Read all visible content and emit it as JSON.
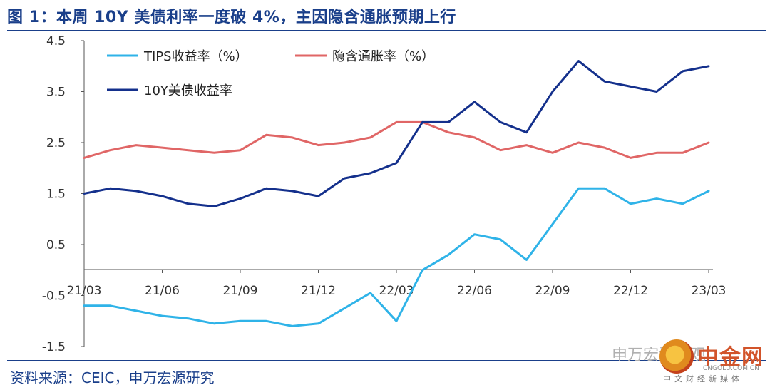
{
  "header": {
    "title": "图 1：本周 10Y 美债利率一度破 4%，主因隐含通胀预期上行"
  },
  "footer": {
    "source": "资料来源：CEIC，申万宏源研究"
  },
  "watermark": {
    "account_text": "申万宏源宏观",
    "logo_name": "中金网",
    "logo_url": "CNGOLD.COM.CN",
    "logo_sub": "中文财经新媒体"
  },
  "chart_data": {
    "type": "line",
    "title": "",
    "xlabel": "",
    "ylabel": "",
    "ylim": [
      -1.5,
      4.5
    ],
    "y_ticks": [
      -1.5,
      -0.5,
      0.5,
      1.5,
      2.5,
      3.5,
      4.5
    ],
    "x_tick_labels": [
      "21/03",
      "21/06",
      "21/09",
      "21/12",
      "22/03",
      "22/06",
      "22/09",
      "22/12",
      "23/03"
    ],
    "x": [
      "21/03",
      "21/04",
      "21/05",
      "21/06",
      "21/07",
      "21/08",
      "21/09",
      "21/10",
      "21/11",
      "21/12",
      "22/01",
      "22/02",
      "22/03",
      "22/04",
      "22/05",
      "22/06",
      "22/07",
      "22/08",
      "22/09",
      "22/10",
      "22/11",
      "22/12",
      "23/01",
      "23/02",
      "23/03"
    ],
    "legend_position": "top-left",
    "grid": false,
    "series": [
      {
        "name": "TIPS收益率（%）",
        "color": "#2fb3e8",
        "values": [
          -0.7,
          -0.7,
          -0.8,
          -0.9,
          -0.95,
          -1.05,
          -1.0,
          -1.0,
          -1.1,
          -1.05,
          -0.75,
          -0.45,
          -1.0,
          0.0,
          0.3,
          0.7,
          0.6,
          0.2,
          0.9,
          1.6,
          1.6,
          1.3,
          1.4,
          1.3,
          1.55
        ]
      },
      {
        "name": "隐含通胀率（%）",
        "color": "#e06666",
        "values": [
          2.2,
          2.35,
          2.45,
          2.4,
          2.35,
          2.3,
          2.35,
          2.65,
          2.6,
          2.45,
          2.5,
          2.6,
          2.9,
          2.9,
          2.7,
          2.6,
          2.35,
          2.45,
          2.3,
          2.5,
          2.4,
          2.2,
          2.3,
          2.3,
          2.5
        ]
      },
      {
        "name": "10Y美债收益率",
        "color": "#14308c",
        "values": [
          1.5,
          1.6,
          1.55,
          1.45,
          1.3,
          1.25,
          1.4,
          1.6,
          1.55,
          1.45,
          1.8,
          1.9,
          2.1,
          2.9,
          2.9,
          3.3,
          2.9,
          2.7,
          3.5,
          4.1,
          3.7,
          3.6,
          3.5,
          3.9,
          4.0
        ]
      }
    ]
  }
}
